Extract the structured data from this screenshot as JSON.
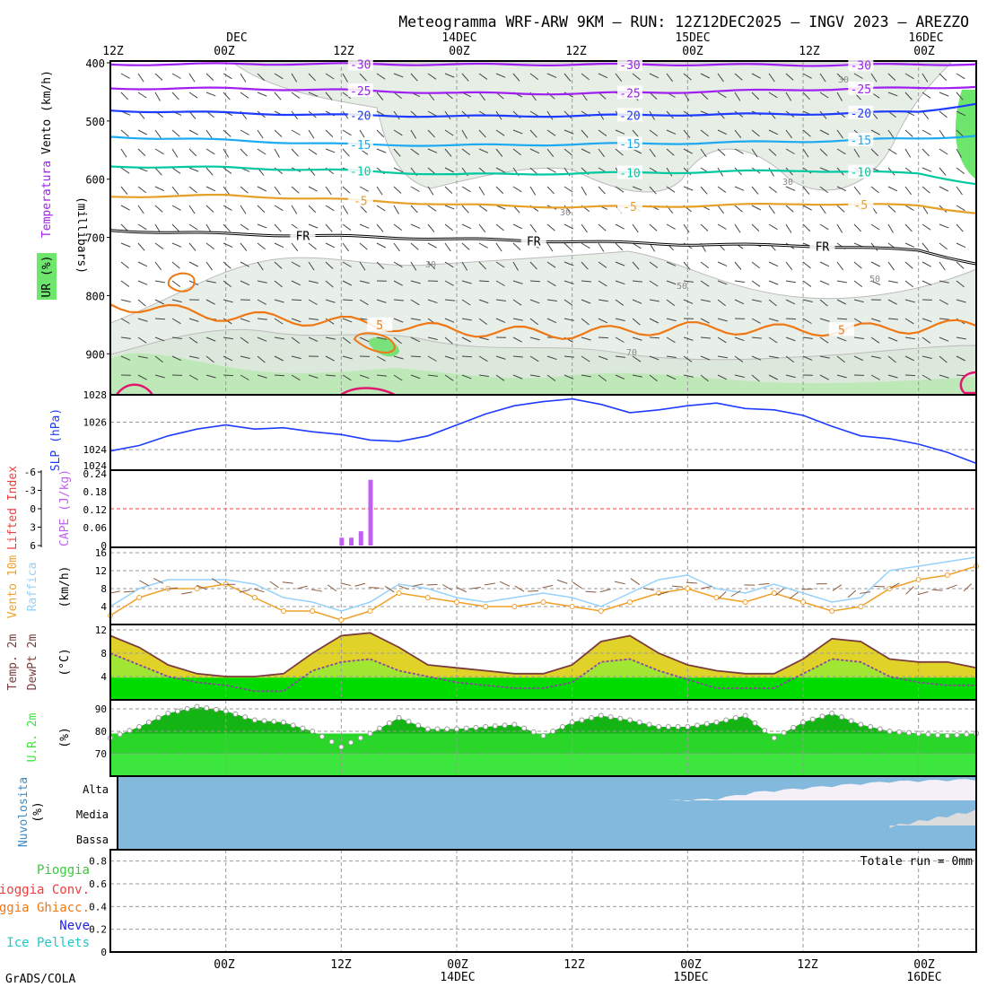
{
  "title": "Meteogramma WRF-ARW 9KM — RUN: 12Z12DEC2025 — INGV 2023 — AREZZO",
  "footer": "GrADS/COLA",
  "time_axis": {
    "top_hours": [
      "12Z",
      "00Z",
      "12Z",
      "00Z",
      "12Z",
      "00Z",
      "12Z",
      "00Z"
    ],
    "top_dates": [
      "DEC",
      "14DEC",
      "15DEC",
      "16DEC"
    ],
    "bottom_hours": [
      "00Z",
      "12Z",
      "00Z",
      "12Z",
      "00Z",
      "12Z",
      "00Z"
    ],
    "bottom_dates": [
      "14DEC",
      "15DEC",
      "16DEC"
    ]
  },
  "panels": {
    "upper": {
      "ylabels": [
        "Vento (km/h)",
        "Temperatura",
        "UR (%)"
      ],
      "unit_vertical": "(millibars)",
      "levels": [
        "400",
        "500",
        "600",
        "700",
        "800",
        "900"
      ],
      "isotherm_labels": [
        "-30",
        "-25",
        "-20",
        "-15",
        "-10",
        "-5",
        "FR",
        "5"
      ],
      "rh_labels": [
        "30",
        "50",
        "70"
      ]
    },
    "slp": {
      "ylabel": "SLP (hPa)",
      "ticks": [
        "1028",
        "1026",
        "1024",
        "1024"
      ]
    },
    "cape": {
      "ylabel_left": "Lifted Index",
      "ylabel_right": "CAPE (J/kg)",
      "li_ticks": [
        "-6",
        "-3",
        "0",
        "3",
        "6"
      ],
      "cape_ticks": [
        "0.24",
        "0.18",
        "0.12",
        "0.06",
        "0"
      ]
    },
    "wind10m": {
      "ylabels": [
        "Vento 10m",
        "Raffica"
      ],
      "unit": "(km/h)",
      "ticks": [
        "16",
        "12",
        "8",
        "4"
      ]
    },
    "temp2m": {
      "ylabels": [
        "Temp. 2m",
        "DewPt 2m"
      ],
      "unit": "(°C)",
      "ticks": [
        "12",
        "8",
        "4"
      ]
    },
    "rh2m": {
      "ylabel": "U.R. 2m",
      "unit": "(%)",
      "ticks": [
        "90",
        "80",
        "70"
      ]
    },
    "clouds": {
      "ylabel": "Nuvolosita",
      "unit": "(%)",
      "levels": [
        "Alta",
        "Media",
        "Bassa"
      ]
    },
    "precip": {
      "labels": [
        "Pioggia",
        "Pioggia Conv.",
        "Pioggia Ghiacc.",
        "Neve",
        "Ice Pellets"
      ],
      "ticks": [
        "0.8",
        "0.6",
        "0.4",
        "0.2",
        "0"
      ],
      "total": "Totale run = 0mm"
    }
  },
  "colors": {
    "purple": "#a020f0",
    "blue": "#1e3cff",
    "cyan": "#1eaaf0",
    "teal": "#00c8a0",
    "gold": "#e6a028",
    "orange": "#f07814",
    "slp": "#1e3cff",
    "cape": "#c060f0",
    "li_red": "#f03c3c",
    "gust": "#96d2fa",
    "wind": "#f0a028",
    "temp_fill": "#e1d22a",
    "dew_fill": "#a0e632",
    "base_green": "#00dc00",
    "rh_dark": "#14b414",
    "rh_light": "#3ce63c",
    "cloud_sky": "#82b9dc",
    "cloud_white": "#f5f0f8",
    "rain": "#3cc83c",
    "conv": "#f03c3c",
    "freezing": "#f07814",
    "snow": "#1e1ef0",
    "pellets": "#1ec8c8"
  },
  "chart_data": [
    {
      "type": "line",
      "name": "upper-air isotherms",
      "hours": [
        0,
        12,
        24,
        36,
        48,
        60,
        72,
        84,
        90
      ],
      "ylim_hPa": [
        1028,
        400
      ],
      "series": [
        {
          "name": "-30",
          "values": [
            403,
            402,
            402,
            403,
            403,
            403,
            404,
            403,
            402
          ]
        },
        {
          "name": "-25",
          "values": [
            444,
            444,
            447,
            452,
            453,
            450,
            446,
            443,
            441
          ]
        },
        {
          "name": "-20",
          "values": [
            482,
            486,
            490,
            492,
            491,
            489,
            488,
            484,
            470
          ]
        },
        {
          "name": "-15",
          "values": [
            527,
            533,
            540,
            542,
            540,
            538,
            535,
            530,
            525
          ]
        },
        {
          "name": "-10",
          "values": [
            578,
            580,
            585,
            592,
            590,
            588,
            585,
            590,
            608
          ]
        },
        {
          "name": "-5",
          "values": [
            630,
            628,
            635,
            644,
            648,
            646,
            642,
            645,
            658
          ]
        },
        {
          "name": "FR",
          "values": [
            688,
            694,
            698,
            703,
            707,
            712,
            714,
            722,
            745
          ]
        },
        {
          "name": "5",
          "values": [
            815,
            835,
            845,
            860,
            865,
            855,
            860,
            855,
            850
          ]
        }
      ]
    },
    {
      "type": "line",
      "name": "SLP",
      "hours": [
        0,
        3,
        6,
        9,
        12,
        15,
        18,
        21,
        24,
        27,
        30,
        33,
        36,
        39,
        42,
        45,
        48,
        51,
        54,
        57,
        60,
        63,
        66,
        69,
        72,
        75,
        78,
        81,
        84,
        87,
        90
      ],
      "values": [
        1023.9,
        1024.3,
        1025.0,
        1025.5,
        1025.8,
        1025.5,
        1025.6,
        1025.3,
        1025.1,
        1024.7,
        1024.6,
        1025.0,
        1025.8,
        1026.6,
        1027.2,
        1027.5,
        1027.7,
        1027.3,
        1026.7,
        1026.9,
        1027.2,
        1027.4,
        1027.0,
        1026.9,
        1026.5,
        1025.7,
        1025.0,
        1024.8,
        1024.4,
        1023.8,
        1023.0
      ],
      "ylim": [
        1022.5,
        1028
      ]
    },
    {
      "type": "bar",
      "name": "CAPE",
      "hours": [
        24,
        25,
        26,
        27
      ],
      "values": [
        0.03,
        0.03,
        0.05,
        0.21
      ],
      "ylim": [
        0,
        0.24
      ]
    },
    {
      "type": "line",
      "name": "10m wind and gust",
      "hours": [
        0,
        3,
        6,
        9,
        12,
        15,
        18,
        21,
        24,
        27,
        30,
        33,
        36,
        39,
        42,
        45,
        48,
        51,
        54,
        57,
        60,
        63,
        66,
        69,
        72,
        75,
        78,
        81,
        84,
        87,
        90
      ],
      "series": [
        {
          "name": "wind",
          "values": [
            2,
            6,
            8,
            8,
            9,
            6,
            3,
            3,
            1,
            3,
            7,
            6,
            5,
            4,
            4,
            5,
            4,
            3,
            5,
            7,
            8,
            6,
            5,
            7,
            5,
            3,
            4,
            8,
            10,
            11,
            13
          ]
        },
        {
          "name": "gust",
          "values": [
            4,
            8,
            10,
            10,
            10,
            9,
            6,
            5,
            3,
            5,
            9,
            8,
            6,
            5,
            6,
            7,
            6,
            4,
            7,
            10,
            11,
            8,
            7,
            9,
            7,
            5,
            6,
            12,
            13,
            14,
            15
          ]
        }
      ],
      "ylim": [
        0,
        16
      ]
    },
    {
      "type": "area",
      "name": "2m temperature and dewpoint",
      "hours": [
        0,
        3,
        6,
        9,
        12,
        15,
        18,
        21,
        24,
        27,
        30,
        33,
        36,
        39,
        42,
        45,
        48,
        51,
        54,
        57,
        60,
        63,
        66,
        69,
        72,
        75,
        78,
        81,
        84,
        87,
        90
      ],
      "series": [
        {
          "name": "temp",
          "values": [
            11,
            9,
            6,
            4.5,
            4,
            4,
            4.5,
            8,
            11,
            11.5,
            9,
            6,
            5.5,
            5,
            4.5,
            4.5,
            6,
            10,
            11,
            8,
            6,
            5,
            4.5,
            4.5,
            7,
            10.5,
            10,
            7,
            6.5,
            6.5,
            5.5
          ]
        },
        {
          "name": "dew",
          "values": [
            8,
            6,
            4,
            3,
            2.5,
            1.5,
            1.5,
            5,
            6.5,
            7,
            5,
            4,
            3,
            2.5,
            2,
            2,
            3,
            6.5,
            7,
            5,
            3.5,
            2,
            2,
            2,
            4.5,
            7,
            6.5,
            4,
            3,
            2.5,
            2.5
          ]
        }
      ],
      "ylim": [
        0,
        12
      ]
    },
    {
      "type": "area",
      "name": "2m relative humidity",
      "hours": [
        0,
        3,
        6,
        9,
        12,
        15,
        18,
        21,
        24,
        27,
        30,
        33,
        36,
        39,
        42,
        45,
        48,
        51,
        54,
        57,
        60,
        63,
        66,
        69,
        72,
        75,
        78,
        81,
        84,
        87,
        90
      ],
      "values": [
        77,
        82,
        88,
        91,
        89,
        85,
        84,
        80,
        73,
        79,
        86,
        81,
        81,
        82,
        83,
        78,
        84,
        87,
        85,
        82,
        82,
        84,
        87,
        77,
        84,
        88,
        83,
        80,
        79,
        78,
        79
      ],
      "ylim": [
        60,
        94
      ]
    },
    {
      "type": "area",
      "name": "cloud cover",
      "series": [
        {
          "name": "Alta",
          "hours": [
            58,
            63,
            67,
            75,
            81,
            90
          ],
          "values": [
            0,
            10,
            40,
            70,
            90,
            100
          ]
        },
        {
          "name": "Media",
          "hours": [
            81,
            90
          ],
          "values": [
            0,
            60
          ]
        },
        {
          "name": "Bassa",
          "hours": [
            0,
            90
          ],
          "values": [
            0,
            0
          ]
        }
      ]
    },
    {
      "type": "bar",
      "name": "precipitation",
      "total": "0mm",
      "ylim": [
        0,
        0.9
      ]
    }
  ]
}
